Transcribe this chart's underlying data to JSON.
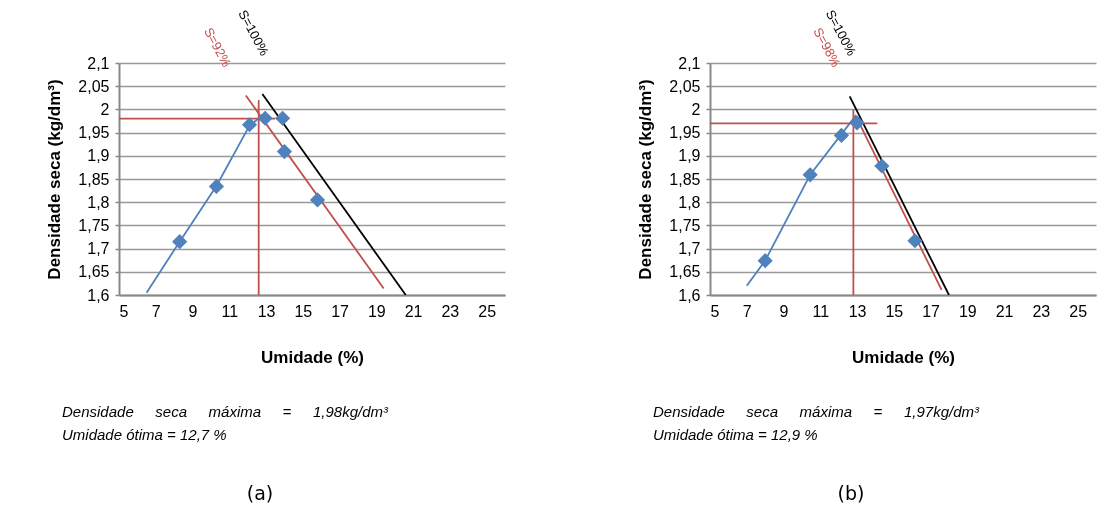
{
  "chart_data": [
    {
      "type": "line",
      "xlabel": "Umidade (%)",
      "ylabel": "Densidade seca (kg/dm³)",
      "xlim": [
        5,
        26
      ],
      "xticks": [
        5,
        7,
        9,
        11,
        13,
        15,
        17,
        19,
        21,
        23,
        25
      ],
      "ylim": [
        1.6,
        2.1
      ],
      "yticks": [
        {
          "value": 1.6,
          "label": "1,6"
        },
        {
          "value": 1.65,
          "label": "1,65"
        },
        {
          "value": 1.7,
          "label": "1,7"
        },
        {
          "value": 1.75,
          "label": "1,75"
        },
        {
          "value": 1.8,
          "label": "1,8"
        },
        {
          "value": 1.85,
          "label": "1,85"
        },
        {
          "value": 1.9,
          "label": "1,9"
        },
        {
          "value": 1.95,
          "label": "1,95"
        },
        {
          "value": 2,
          "label": "2"
        },
        {
          "value": 2.05,
          "label": "2,05"
        },
        {
          "value": 2.1,
          "label": "2,1"
        }
      ],
      "grid": "y",
      "series": [
        {
          "color": "#4f81bd",
          "x": [
            6.5,
            8.3,
            10.3,
            12.1,
            12.9
          ],
          "values": [
            1.605,
            1.715,
            1.835,
            1.965,
            1.99
          ]
        },
        {
          "name": "S=92%",
          "color": "#c0504d",
          "x": [
            11.9,
            19.4
          ],
          "values": [
            2.03,
            1.614
          ]
        },
        {
          "name": "S=100%",
          "color": "#000000",
          "x": [
            12.8,
            20.6
          ],
          "values": [
            2.033,
            1.6
          ]
        },
        {
          "color": "#c0504d",
          "x": [
            12.6,
            12.6
          ],
          "values": [
            1.6,
            2.02
          ]
        },
        {
          "color": "#c0504d",
          "x": [
            5,
            13.5
          ],
          "values": [
            1.98,
            1.98
          ]
        },
        {
          "type": "scatter",
          "marker": "diamond",
          "color": "#4f81bd",
          "x": [
            8.3,
            10.3,
            12.1,
            12.95,
            13.9,
            14,
            15.8
          ],
          "values": [
            1.715,
            1.834,
            1.967,
            1.981,
            1.981,
            1.909,
            1.805
          ]
        }
      ],
      "annotations": [
        "Densidade seca máxima = 1,98kg/dm³",
        "Umidade ótima = 12,7 %",
        "(a)"
      ]
    },
    {
      "type": "line",
      "xlabel": "Umidade (%)",
      "ylabel": "Densidade seca (kg/dm³)",
      "xlim": [
        5,
        26
      ],
      "xticks": [
        5,
        7,
        9,
        11,
        13,
        15,
        17,
        19,
        21,
        23,
        25
      ],
      "ylim": [
        1.6,
        2.1
      ],
      "yticks": [
        {
          "value": 1.6,
          "label": "1,6"
        },
        {
          "value": 1.65,
          "label": "1,65"
        },
        {
          "value": 1.7,
          "label": "1,7"
        },
        {
          "value": 1.75,
          "label": "1,75"
        },
        {
          "value": 1.8,
          "label": "1,8"
        },
        {
          "value": 1.85,
          "label": "1,85"
        },
        {
          "value": 1.9,
          "label": "1,9"
        },
        {
          "value": 1.95,
          "label": "1,95"
        },
        {
          "value": 2,
          "label": "2"
        },
        {
          "value": 2.05,
          "label": "2,05"
        },
        {
          "value": 2.1,
          "label": "2,1"
        }
      ],
      "grid": "y",
      "series": [
        {
          "color": "#4f81bd",
          "x": [
            7,
            8,
            10.45,
            12.1,
            12.9
          ],
          "values": [
            1.62,
            1.674,
            1.859,
            1.944,
            1.985
          ]
        },
        {
          "name": "S=98%",
          "color": "#c0504d",
          "x": [
            12.9,
            17.6
          ],
          "values": [
            1.988,
            1.611
          ]
        },
        {
          "name": "S=100%",
          "color": "#000000",
          "x": [
            12.6,
            18
          ],
          "values": [
            2.028,
            1.6
          ]
        },
        {
          "color": "#c0504d",
          "x": [
            12.8,
            12.8
          ],
          "values": [
            1.6,
            2
          ]
        },
        {
          "color": "#c0504d",
          "x": [
            5,
            14.1
          ],
          "values": [
            1.97,
            1.97
          ]
        },
        {
          "type": "scatter",
          "marker": "diamond",
          "color": "#4f81bd",
          "x": [
            8,
            10.45,
            12.15,
            13,
            14.35,
            16.15
          ],
          "values": [
            1.674,
            1.859,
            1.944,
            1.971,
            1.878,
            1.717
          ]
        }
      ],
      "annotations": [
        "Densidade seca máxima = 1,97kg/dm³",
        "Umidade ótima = 12,9 %",
        "(b)"
      ]
    }
  ]
}
